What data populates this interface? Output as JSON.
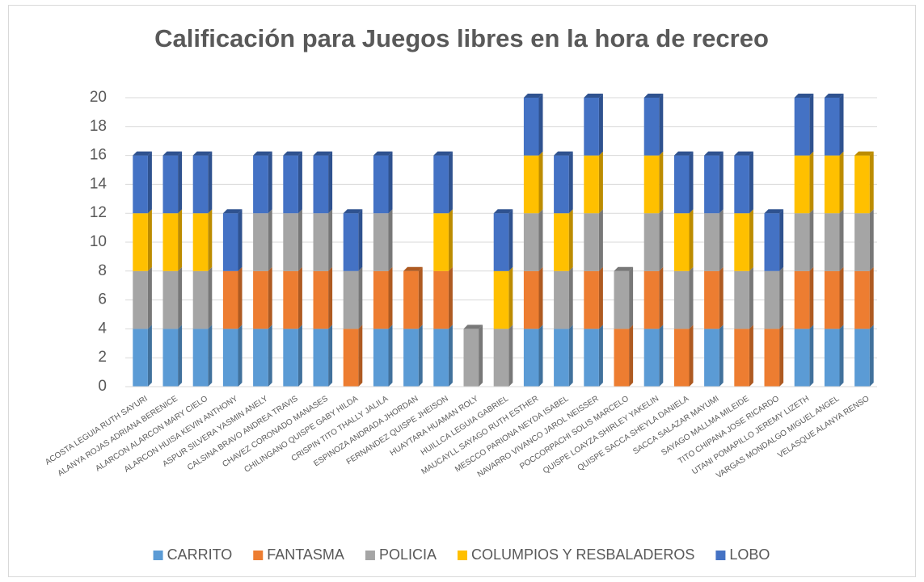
{
  "chart_data": {
    "type": "bar",
    "stacked": true,
    "title": "Calificación para Juegos libres en la hora de recreo",
    "categories": [
      "ACOSTA LEGUIA RUTH SAYURI",
      "ALANYA ROJAS ADRIANA BERENICE",
      "ALARCON ALARCON MARY CIELO",
      "ALARCON HUISA KEVIN ANTHONY",
      "ASPUR SILVERA YASMIN ANELY",
      "CALSINA BRAVO ANDREA TRAVIS",
      "CHAVEZ CORONADO MANASES",
      "CHILINGANO QUISPE GABY HILDA",
      "CRISPIN TITO THALLY JALILA",
      "ESPINOZA ANDRADA JHORDAN",
      "FERNANDEZ QUISPE JHEISON",
      "HUAYTARA HUAMAN ROLY",
      "HUILLCA LEGUIA GABRIEL",
      "MAUCAYLL SAYAGO RUTH ESTHER",
      "MESCCO PARIONA NEYDA ISABEL",
      "NAVARRO VIVANCO JAROL NEISSER",
      "POCCORPACHI SOLIS MARCELO",
      "QUISPE LOAYZA SHIRLEY YAKELIN",
      "QUISPE SACCA SHEYLA DANIELA",
      "SACCA SALAZAR MAYUMI",
      "SAYAGO MALLMA MILEIDE",
      "TITO CHIPANA JOSE RICARDO",
      "UTANI POMAPILLO JEREMY LIZETH",
      "VARGAS MONDALGO MIGUEL ANGEL",
      "VELASQUE ALANYA RENSO"
    ],
    "series": [
      {
        "name": "CARRITO",
        "color": "#5b9bd5",
        "side": "#41719c",
        "values": [
          4,
          4,
          4,
          4,
          4,
          4,
          4,
          0,
          4,
          4,
          4,
          0,
          0,
          4,
          4,
          4,
          0,
          4,
          0,
          4,
          0,
          0,
          4,
          4,
          4
        ]
      },
      {
        "name": "FANTASMA",
        "color": "#ed7d31",
        "side": "#ae5a21",
        "values": [
          0,
          0,
          0,
          4,
          4,
          4,
          4,
          4,
          4,
          4,
          4,
          0,
          0,
          4,
          0,
          4,
          4,
          4,
          4,
          4,
          4,
          4,
          4,
          4,
          4
        ]
      },
      {
        "name": "POLICIA",
        "color": "#a5a5a5",
        "side": "#787878",
        "values": [
          4,
          4,
          4,
          0,
          4,
          4,
          4,
          4,
          4,
          0,
          0,
          4,
          4,
          4,
          4,
          4,
          4,
          4,
          4,
          4,
          4,
          4,
          4,
          4,
          4
        ]
      },
      {
        "name": "COLUMPIOS Y RESBALADEROS",
        "color": "#ffc000",
        "side": "#bc8c00",
        "values": [
          4,
          4,
          4,
          0,
          0,
          0,
          0,
          0,
          0,
          0,
          4,
          0,
          4,
          4,
          4,
          4,
          0,
          4,
          4,
          0,
          4,
          0,
          4,
          4,
          4
        ]
      },
      {
        "name": "LOBO",
        "color": "#4472c4",
        "side": "#2f528f",
        "values": [
          4,
          4,
          4,
          4,
          4,
          4,
          4,
          4,
          4,
          0,
          4,
          0,
          4,
          4,
          4,
          4,
          0,
          4,
          4,
          4,
          4,
          4,
          4,
          4,
          0
        ]
      }
    ],
    "ylim": [
      0,
      20
    ],
    "yticks": [
      0,
      2,
      4,
      6,
      8,
      10,
      12,
      14,
      16,
      18,
      20
    ],
    "grid": true,
    "legend": "bottom"
  }
}
